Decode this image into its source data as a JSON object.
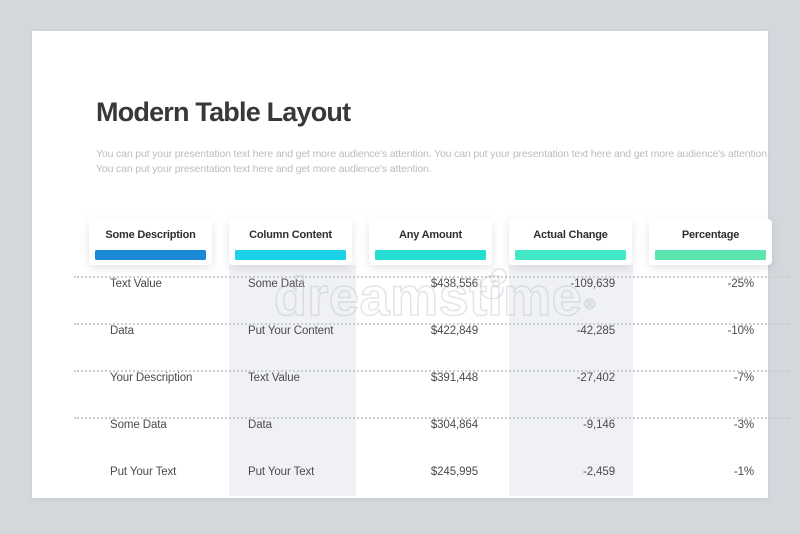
{
  "page": {
    "title": "Modern Table Layout",
    "subtitle": "You can put your presentation text here and get more audience's attention. You can put your presentation text here and get more audience's attention. You can put your presentation text here and get more audience's attention."
  },
  "watermark": {
    "text": "dreamstime",
    "registered_symbol": "®"
  },
  "colors": {
    "page_background": "#d4d8dd",
    "card_background": "#ffffff",
    "column_stripe": "#f0f1f4",
    "title_text": "#383838",
    "subtitle_text": "#b9bdc1",
    "header_text": "#2e2e2e",
    "cell_text": "#4b4b4b",
    "dotted_separator": "#c9cdd2"
  },
  "chart_data": {
    "type": "table",
    "title": "Modern Table Layout",
    "columns": [
      {
        "label": "Some Description",
        "accent_color": "#1b89d6",
        "align": "left",
        "striped": false
      },
      {
        "label": "Column Content",
        "accent_color": "#1bd0e9",
        "align": "left",
        "striped": true
      },
      {
        "label": "Any Amount",
        "accent_color": "#24ded2",
        "align": "right",
        "striped": false
      },
      {
        "label": "Actual Change",
        "accent_color": "#40e8c5",
        "align": "right",
        "striped": true
      },
      {
        "label": "Percentage",
        "accent_color": "#5ce5ae",
        "align": "right",
        "striped": false
      }
    ],
    "rows": [
      [
        "Text Value",
        "Some Data",
        "$438,556",
        "-109,639",
        "-25%"
      ],
      [
        "Data",
        "Put Your Content",
        "$422,849",
        "-42,285",
        "-10%"
      ],
      [
        "Your Description",
        "Text Value",
        "$391,448",
        "-27,402",
        "-7%"
      ],
      [
        "Some Data",
        "Data",
        "$304,864",
        "-9,146",
        "-3%"
      ],
      [
        "Put Your Text",
        "Put Your Text",
        "$245,995",
        "-2,459",
        "-1%"
      ]
    ]
  }
}
